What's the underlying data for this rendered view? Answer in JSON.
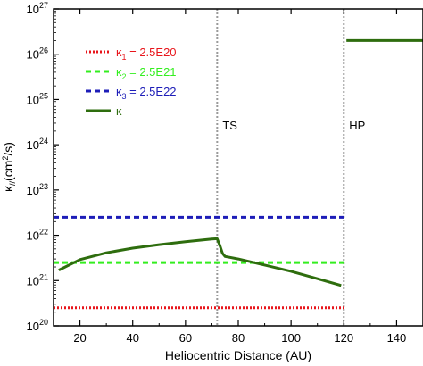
{
  "chart_data": {
    "type": "line",
    "xlabel": "Heliocentric Distance (AU)",
    "ylabel": "κ// (cm²/s)",
    "xlim": [
      10,
      150
    ],
    "ylim_log10": [
      20,
      27
    ],
    "yscale": "log",
    "x_ticks": [
      20,
      40,
      60,
      80,
      100,
      120,
      140
    ],
    "y_tick_exponents": [
      20,
      21,
      22,
      23,
      24,
      25,
      26,
      27
    ],
    "legend_placement": "top-left",
    "series": [
      {
        "name": "κ1 = 2.5E20",
        "label_main": "κ",
        "label_sub": "1",
        "label_value": " = 2.5E20",
        "style": "dotted",
        "color": "#e8151b",
        "x": [
          10,
          120
        ],
        "y": [
          2.5e+20,
          2.5e+20
        ]
      },
      {
        "name": "κ2 = 2.5E21",
        "label_main": "κ",
        "label_sub": "2",
        "label_value": " = 2.5E21",
        "style": "dashed",
        "color": "#33ee1f",
        "x": [
          10,
          120
        ],
        "y": [
          2.5e+21,
          2.5e+21
        ]
      },
      {
        "name": "κ3 = 2.5E22",
        "label_main": "κ",
        "label_sub": "3",
        "label_value": " = 2.5E22",
        "style": "dashed",
        "color": "#1d1db8",
        "x": [
          10,
          120
        ],
        "y": [
          2.5e+22,
          2.5e+22
        ]
      },
      {
        "name": "κ",
        "label_main": "κ",
        "label_sub": "",
        "label_value": "",
        "style": "solid",
        "color": "#2e6d0e",
        "segments": [
          {
            "x": [
              12,
              20,
              30,
              40,
              50,
              60,
              70,
              72,
              73,
              74,
              75,
              80,
              90,
              100,
              110,
              119
            ],
            "y": [
              1.7e+21,
              2.9e+21,
              4.1e+21,
              5.2e+21,
              6.2e+21,
              7.2e+21,
              8.3e+21,
              8.4e+21,
              6e+21,
              4e+21,
              3.4e+21,
              3e+21,
              2.2e+21,
              1.6e+21,
              1.1e+21,
              7.8e+20
            ]
          },
          {
            "x": [
              121,
              150
            ],
            "y": [
              2e+26,
              2e+26
            ]
          }
        ]
      }
    ],
    "vlines": [
      {
        "x": 72,
        "label": "TS"
      },
      {
        "x": 120,
        "label": "HP"
      }
    ]
  }
}
